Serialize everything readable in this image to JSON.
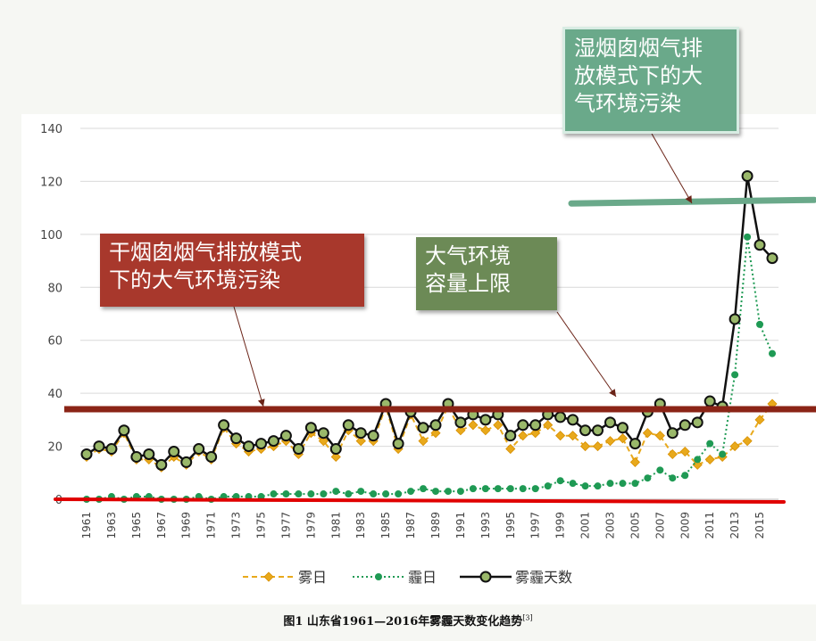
{
  "annotations": {
    "wet_chimney": "湿烟囱烟气排\n放模式下的大\n气环境污染",
    "dry_chimney": "干烟囱烟气排放模式\n下的大气环境污染",
    "capacity": "大气环境\n容量上限"
  },
  "caption": {
    "text": "图1  山东省1961—2016年雾霾天数变化趋势",
    "ref": "[3]"
  },
  "colors": {
    "fog": "#e8a91c",
    "haze": "#1f9a54",
    "total": "#111111",
    "wet_line": "#6aa98a",
    "dry_line": "#8b2416",
    "base_line": "#e00000"
  },
  "chart_data": {
    "type": "line",
    "title": "",
    "xlabel": "",
    "ylabel": "",
    "ylim": [
      0,
      140
    ],
    "yticks": [
      0,
      20,
      40,
      60,
      80,
      100,
      120,
      140
    ],
    "grid": true,
    "legend_position": "bottom",
    "x": [
      1961,
      1962,
      1963,
      1964,
      1965,
      1966,
      1967,
      1968,
      1969,
      1970,
      1971,
      1972,
      1973,
      1974,
      1975,
      1976,
      1977,
      1978,
      1979,
      1980,
      1981,
      1982,
      1983,
      1984,
      1985,
      1986,
      1987,
      1988,
      1989,
      1990,
      1991,
      1992,
      1993,
      1994,
      1995,
      1996,
      1997,
      1998,
      1999,
      2000,
      2001,
      2002,
      2003,
      2004,
      2005,
      2006,
      2007,
      2008,
      2009,
      2010,
      2011,
      2012,
      2013,
      2014,
      2015,
      2016
    ],
    "xtick_labels": [
      "1961",
      "1963",
      "1965",
      "1967",
      "1969",
      "1971",
      "1973",
      "1975",
      "1977",
      "1979",
      "1981",
      "1983",
      "1985",
      "1987",
      "1989",
      "1991",
      "1993",
      "1995",
      "1997",
      "1999",
      "2001",
      "2003",
      "2005",
      "2007",
      "2009",
      "2011",
      "2013",
      "2015"
    ],
    "series": [
      {
        "name": "雾日",
        "style": "dashed",
        "values": [
          16,
          19,
          18,
          25,
          15,
          15,
          12,
          16,
          13,
          18,
          15,
          27,
          21,
          18,
          19,
          20,
          22,
          17,
          25,
          22,
          16,
          26,
          22,
          22,
          35,
          19,
          32,
          22,
          25,
          35,
          26,
          28,
          26,
          28,
          19,
          24,
          25,
          28,
          24,
          24,
          20,
          20,
          22,
          23,
          14,
          25,
          24,
          17,
          18,
          13,
          15,
          16,
          20,
          22,
          30,
          36
        ]
      },
      {
        "name": "霾日",
        "style": "dotted",
        "values": [
          0,
          0,
          1,
          0,
          1,
          1,
          0,
          0,
          0,
          1,
          0,
          1,
          1,
          1,
          1,
          2,
          2,
          2,
          2,
          2,
          3,
          2,
          3,
          2,
          2,
          2,
          3,
          4,
          3,
          3,
          3,
          4,
          4,
          4,
          4,
          4,
          4,
          5,
          7,
          6,
          5,
          5,
          6,
          6,
          6,
          8,
          11,
          8,
          9,
          15,
          21,
          17,
          47,
          99,
          66,
          55
        ]
      },
      {
        "name": "雾霾天数",
        "style": "solid",
        "values": [
          17,
          20,
          19,
          26,
          16,
          17,
          13,
          18,
          14,
          19,
          16,
          28,
          23,
          20,
          21,
          22,
          24,
          19,
          27,
          25,
          19,
          28,
          25,
          24,
          36,
          21,
          33,
          27,
          28,
          36,
          29,
          32,
          30,
          32,
          24,
          28,
          28,
          32,
          31,
          30,
          26,
          26,
          29,
          27,
          21,
          33,
          36,
          25,
          28,
          29,
          37,
          35,
          68,
          122,
          96,
          91
        ]
      }
    ],
    "reference_lines": [
      {
        "label": "湿烟囱烟气排放模式下的大气环境污染",
        "y": 112
      },
      {
        "label": "大气环境容量上限",
        "y": 34
      },
      {
        "label": "干烟囱烟气排放模式下的大气环境污染",
        "y": 0
      }
    ]
  }
}
